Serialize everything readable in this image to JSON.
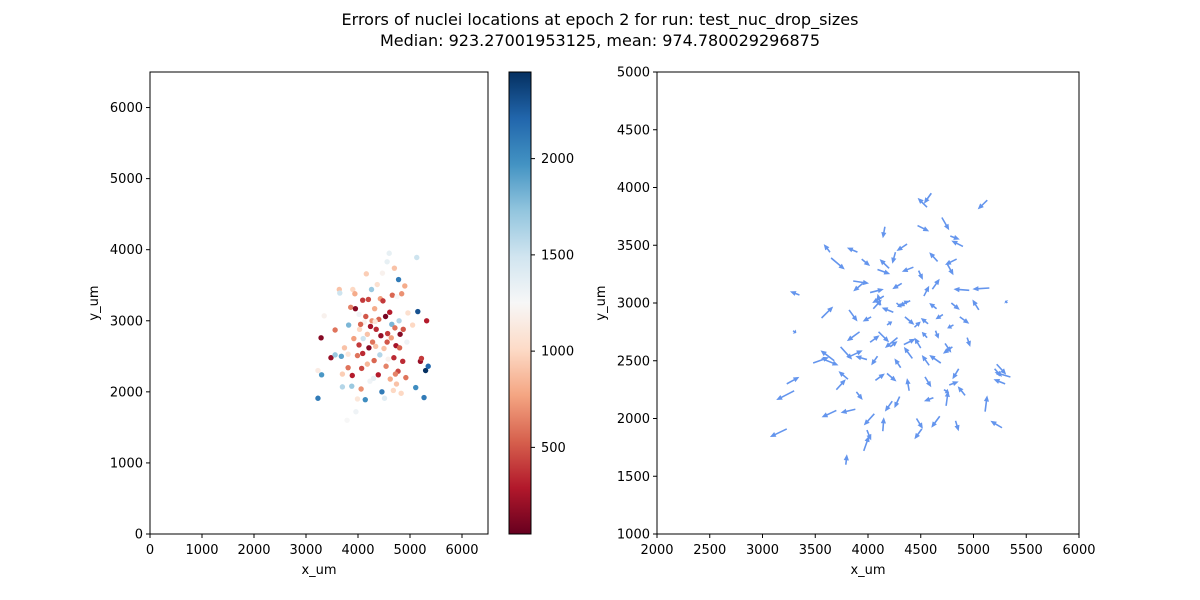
{
  "title_line1": "Errors of nuclei locations at epoch 2 for run: test_nuc_drop_sizes",
  "title_line2": "Median: 923.27001953125, mean: 974.780029296875",
  "colors": {
    "arrow": "#6495ed",
    "cmap": [
      "#67001f",
      "#b2182b",
      "#d6604d",
      "#f4a582",
      "#fddbc7",
      "#f7f7f7",
      "#d1e5f0",
      "#92c5de",
      "#4393c3",
      "#2166ac",
      "#053061"
    ]
  },
  "chart_data": [
    {
      "type": "scatter",
      "xlabel": "x_um",
      "ylabel": "y_um",
      "xlim": [
        0,
        6500
      ],
      "ylim": [
        0,
        6500
      ],
      "xticks": [
        0,
        1000,
        2000,
        3000,
        4000,
        5000,
        6000
      ],
      "yticks": [
        0,
        1000,
        2000,
        3000,
        4000,
        5000,
        6000
      ],
      "colormap": "RdBu",
      "colorbar": {
        "range": [
          50,
          2450
        ],
        "ticks": [
          500,
          1000,
          1500,
          2000
        ]
      },
      "points": [
        [
          3230,
          1910,
          2100
        ],
        [
          3300,
          2240,
          1950
        ],
        [
          3230,
          2300,
          1150
        ],
        [
          3290,
          2760,
          150
        ],
        [
          3350,
          3070,
          1200
        ],
        [
          3480,
          2480,
          200
        ],
        [
          3560,
          2520,
          1700
        ],
        [
          3560,
          2870,
          600
        ],
        [
          3640,
          3440,
          900
        ],
        [
          3650,
          3390,
          1500
        ],
        [
          3680,
          2500,
          1900
        ],
        [
          3700,
          2070,
          1600
        ],
        [
          3740,
          2620,
          900
        ],
        [
          3790,
          1600,
          1250
        ],
        [
          3810,
          2340,
          600
        ],
        [
          3810,
          2530,
          1100
        ],
        [
          3820,
          2940,
          1800
        ],
        [
          3860,
          3190,
          650
        ],
        [
          3880,
          2080,
          1700
        ],
        [
          3890,
          2230,
          300
        ],
        [
          3900,
          3440,
          1000
        ],
        [
          3920,
          2750,
          750
        ],
        [
          3940,
          3380,
          800
        ],
        [
          3950,
          3170,
          150
        ],
        [
          3960,
          1720,
          1300
        ],
        [
          3990,
          1900,
          1100
        ],
        [
          3990,
          2510,
          600
        ],
        [
          4020,
          2660,
          400
        ],
        [
          4020,
          3090,
          1300
        ],
        [
          4030,
          2880,
          1000
        ],
        [
          4060,
          2040,
          700
        ],
        [
          4070,
          2330,
          450
        ],
        [
          4090,
          2540,
          350
        ],
        [
          4090,
          3290,
          400
        ],
        [
          4100,
          2750,
          1500
        ],
        [
          4120,
          2980,
          1200
        ],
        [
          4140,
          1890,
          2000
        ],
        [
          4150,
          3060,
          500
        ],
        [
          4160,
          3660,
          950
        ],
        [
          4180,
          2390,
          850
        ],
        [
          4200,
          3300,
          450
        ],
        [
          4210,
          2620,
          150
        ],
        [
          4230,
          2150,
          1300
        ],
        [
          4240,
          2920,
          250
        ],
        [
          4260,
          3440,
          1700
        ],
        [
          4270,
          3000,
          700
        ],
        [
          4280,
          2700,
          600
        ],
        [
          4300,
          2190,
          1350
        ],
        [
          4310,
          2440,
          550
        ],
        [
          4320,
          3170,
          800
        ],
        [
          4340,
          2640,
          900
        ],
        [
          4350,
          2880,
          350
        ],
        [
          4370,
          3510,
          1050
        ],
        [
          4390,
          2240,
          300
        ],
        [
          4400,
          3020,
          550
        ],
        [
          4420,
          2520,
          1600
        ],
        [
          4430,
          3310,
          750
        ],
        [
          4440,
          2790,
          200
        ],
        [
          4460,
          2000,
          2100
        ],
        [
          4470,
          3670,
          1200
        ],
        [
          4480,
          3280,
          400
        ],
        [
          4500,
          2610,
          900
        ],
        [
          4510,
          1910,
          1400
        ],
        [
          4530,
          3060,
          100
        ],
        [
          4540,
          2360,
          650
        ],
        [
          4560,
          3830,
          1350
        ],
        [
          4570,
          2820,
          400
        ],
        [
          4580,
          2460,
          1200
        ],
        [
          4600,
          3950,
          1350
        ],
        [
          4610,
          3120,
          300
        ],
        [
          4620,
          2180,
          800
        ],
        [
          4640,
          2760,
          750
        ],
        [
          4650,
          2950,
          1800
        ],
        [
          4660,
          3360,
          550
        ],
        [
          4680,
          2020,
          1000
        ],
        [
          4690,
          2480,
          350
        ],
        [
          4700,
          3740,
          900
        ],
        [
          4710,
          2900,
          600
        ],
        [
          4730,
          2650,
          250
        ],
        [
          4740,
          2110,
          900
        ],
        [
          4750,
          3340,
          1250
        ],
        [
          4770,
          2290,
          450
        ],
        [
          4780,
          3580,
          2100
        ],
        [
          4790,
          3000,
          1600
        ],
        [
          4800,
          2620,
          550
        ],
        [
          4810,
          2810,
          150
        ],
        [
          4830,
          1980,
          1000
        ],
        [
          4840,
          3380,
          700
        ],
        [
          4860,
          2430,
          350
        ],
        [
          4870,
          2880,
          500
        ],
        [
          4900,
          3490,
          800
        ],
        [
          4920,
          2200,
          600
        ],
        [
          4940,
          2700,
          1300
        ],
        [
          4960,
          3110,
          1050
        ],
        [
          5050,
          2940,
          1000
        ],
        [
          5110,
          2060,
          2000
        ],
        [
          5130,
          3890,
          1500
        ],
        [
          5150,
          3130,
          2300
        ],
        [
          5200,
          2430,
          200
        ],
        [
          5220,
          2470,
          400
        ],
        [
          5270,
          1920,
          2100
        ],
        [
          5300,
          2300,
          2450
        ],
        [
          5320,
          3000,
          300
        ],
        [
          5350,
          2360,
          2200
        ],
        [
          4050,
          2950,
          550
        ],
        [
          4180,
          2810,
          900
        ],
        [
          4330,
          2990,
          1100
        ],
        [
          4560,
          2700,
          500
        ],
        [
          4720,
          2250,
          650
        ],
        [
          3700,
          2250,
          950
        ]
      ]
    },
    {
      "type": "quiver",
      "xlabel": "x_um",
      "ylabel": "y_um",
      "xlim": [
        2000,
        6000
      ],
      "ylim": [
        1000,
        5000
      ],
      "xticks": [
        2000,
        2500,
        3000,
        3500,
        4000,
        4500,
        5000,
        5500,
        6000
      ],
      "yticks": [
        1000,
        1500,
        2000,
        2500,
        3000,
        3500,
        4000,
        4500,
        5000
      ],
      "arrows": [
        [
          3230,
          1910,
          -160,
          -70
        ],
        [
          3300,
          2240,
          -170,
          -80
        ],
        [
          3230,
          2300,
          120,
          60
        ],
        [
          3290,
          2760,
          30,
          -20
        ],
        [
          3350,
          3070,
          -90,
          30
        ],
        [
          3480,
          2480,
          150,
          50
        ],
        [
          3560,
          2520,
          160,
          -60
        ],
        [
          3560,
          2870,
          110,
          100
        ],
        [
          3640,
          3440,
          -60,
          70
        ],
        [
          3650,
          3390,
          130,
          -100
        ],
        [
          3680,
          2500,
          -130,
          90
        ],
        [
          3700,
          2070,
          -140,
          -60
        ],
        [
          3740,
          2620,
          110,
          -110
        ],
        [
          3790,
          1600,
          10,
          90
        ],
        [
          3810,
          2340,
          -90,
          70
        ],
        [
          3810,
          2530,
          140,
          60
        ],
        [
          3820,
          2940,
          80,
          -100
        ],
        [
          3860,
          3190,
          150,
          -20
        ],
        [
          3880,
          2080,
          -140,
          -30
        ],
        [
          3890,
          2230,
          60,
          -70
        ],
        [
          3900,
          3440,
          -100,
          40
        ],
        [
          3920,
          2750,
          -120,
          -80
        ],
        [
          3940,
          3380,
          80,
          -60
        ],
        [
          3950,
          3170,
          -90,
          -70
        ],
        [
          3960,
          1720,
          50,
          130
        ],
        [
          3990,
          1900,
          40,
          -90
        ],
        [
          3990,
          2510,
          -110,
          30
        ],
        [
          4020,
          2660,
          90,
          60
        ],
        [
          4020,
          3090,
          130,
          30
        ],
        [
          4030,
          2880,
          -80,
          -40
        ],
        [
          4060,
          2040,
          -100,
          -100
        ],
        [
          4070,
          2330,
          90,
          60
        ],
        [
          4090,
          2540,
          -60,
          -80
        ],
        [
          4090,
          3290,
          120,
          -40
        ],
        [
          4100,
          2750,
          100,
          -90
        ],
        [
          4120,
          2980,
          -30,
          100
        ],
        [
          4140,
          1890,
          10,
          120
        ],
        [
          4150,
          3060,
          -110,
          -60
        ],
        [
          4160,
          3660,
          -20,
          -100
        ],
        [
          4180,
          2390,
          90,
          -70
        ],
        [
          4200,
          3300,
          -90,
          80
        ],
        [
          4210,
          2620,
          70,
          50
        ],
        [
          4230,
          2150,
          -70,
          -90
        ],
        [
          4240,
          2920,
          -110,
          40
        ],
        [
          4260,
          3440,
          -30,
          -100
        ],
        [
          4270,
          3000,
          50,
          -40
        ],
        [
          4280,
          2700,
          -120,
          -90
        ],
        [
          4300,
          2190,
          -50,
          -100
        ],
        [
          4310,
          2440,
          -60,
          80
        ],
        [
          4320,
          3170,
          -90,
          -50
        ],
        [
          4340,
          2640,
          110,
          50
        ],
        [
          4350,
          2880,
          90,
          -70
        ],
        [
          4370,
          3510,
          -100,
          -60
        ],
        [
          4390,
          2240,
          -20,
          110
        ],
        [
          4400,
          3020,
          -110,
          -50
        ],
        [
          4420,
          2520,
          -80,
          100
        ],
        [
          4430,
          3310,
          -110,
          -40
        ],
        [
          4440,
          2790,
          60,
          50
        ],
        [
          4460,
          2000,
          60,
          -90
        ],
        [
          4470,
          3670,
          110,
          -50
        ],
        [
          4480,
          3280,
          40,
          -80
        ],
        [
          4500,
          2610,
          -60,
          90
        ],
        [
          4510,
          1910,
          -70,
          -90
        ],
        [
          4530,
          3060,
          50,
          90
        ],
        [
          4540,
          2360,
          60,
          -90
        ],
        [
          4560,
          3830,
          -90,
          80
        ],
        [
          4570,
          2820,
          -70,
          50
        ],
        [
          4580,
          2460,
          -70,
          90
        ],
        [
          4600,
          3950,
          -70,
          -90
        ],
        [
          4610,
          3120,
          70,
          90
        ],
        [
          4620,
          2180,
          -90,
          -30
        ],
        [
          4640,
          2760,
          30,
          -70
        ],
        [
          4650,
          2950,
          -70,
          50
        ],
        [
          4660,
          3360,
          -80,
          80
        ],
        [
          4680,
          2020,
          -80,
          -100
        ],
        [
          4690,
          2480,
          -110,
          70
        ],
        [
          4700,
          3740,
          70,
          -110
        ],
        [
          4710,
          2900,
          -70,
          -40
        ],
        [
          4730,
          2650,
          60,
          -80
        ],
        [
          4740,
          2110,
          20,
          130
        ],
        [
          4750,
          3340,
          60,
          -100
        ],
        [
          4770,
          2290,
          90,
          30
        ],
        [
          4780,
          3580,
          90,
          -30
        ],
        [
          4790,
          3000,
          80,
          -60
        ],
        [
          4800,
          2620,
          -90,
          -60
        ],
        [
          4810,
          2810,
          -60,
          -30
        ],
        [
          4830,
          1980,
          30,
          -90
        ],
        [
          4840,
          3380,
          -110,
          -50
        ],
        [
          4860,
          2430,
          -60,
          -90
        ],
        [
          4870,
          2880,
          90,
          -60
        ],
        [
          4900,
          3490,
          -110,
          50
        ],
        [
          4920,
          2200,
          -70,
          80
        ],
        [
          4940,
          2700,
          30,
          -80
        ],
        [
          4960,
          3110,
          -150,
          10
        ],
        [
          5050,
          2940,
          -60,
          90
        ],
        [
          5110,
          2060,
          20,
          140
        ],
        [
          5130,
          3890,
          -90,
          -80
        ],
        [
          5150,
          3130,
          -160,
          -10
        ],
        [
          5200,
          2430,
          70,
          -70
        ],
        [
          5220,
          2470,
          90,
          -90
        ],
        [
          5270,
          1920,
          -110,
          60
        ],
        [
          5300,
          2300,
          -110,
          40
        ],
        [
          5320,
          3000,
          -20,
          20
        ],
        [
          5350,
          2360,
          -150,
          40
        ],
        [
          4050,
          2950,
          80,
          80
        ],
        [
          4180,
          2810,
          50,
          30
        ],
        [
          4330,
          2990,
          50,
          30
        ],
        [
          4560,
          2700,
          -50,
          50
        ],
        [
          4720,
          2250,
          50,
          -30
        ],
        [
          3700,
          2250,
          90,
          90
        ]
      ]
    }
  ]
}
